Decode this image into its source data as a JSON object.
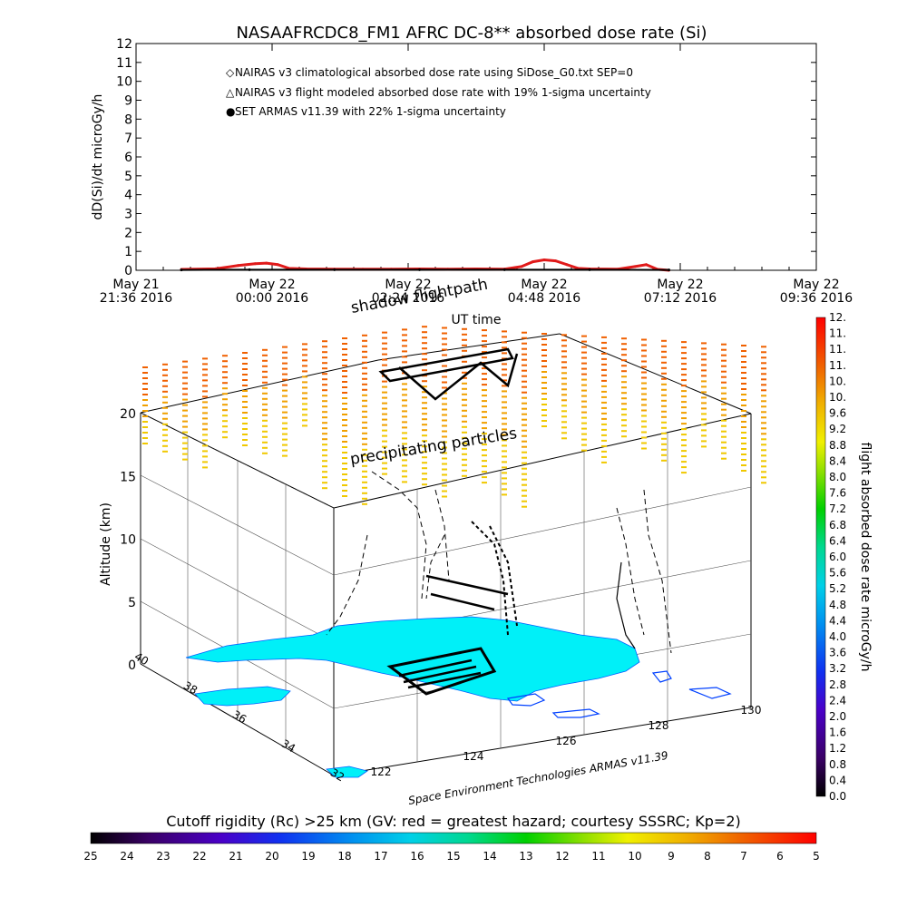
{
  "chart_data": [
    {
      "type": "line",
      "title": "NASAAFRCDC8_FM1 AFRC DC-8** absorbed dose rate (Si)",
      "xlabel": "UT time",
      "ylabel": "dD(Si)/dt microGy/h",
      "ylim": [
        0,
        12
      ],
      "y_ticks": [
        "0",
        "1",
        "2",
        "3",
        "4",
        "5",
        "6",
        "7",
        "8",
        "9",
        "10",
        "11",
        "12"
      ],
      "x_ticks": [
        {
          "top": "May 21",
          "bottom": "21:36 2016"
        },
        {
          "top": "May 22",
          "bottom": "00:00 2016"
        },
        {
          "top": "May 22",
          "bottom": "02:24 2016"
        },
        {
          "top": "May 22",
          "bottom": "04:48 2016"
        },
        {
          "top": "May 22",
          "bottom": "07:12 2016"
        },
        {
          "top": "May 22",
          "bottom": "09:36 2016"
        }
      ],
      "legend": [
        {
          "symbol": "◇",
          "color": "#e01a1a",
          "label": "NAIRAS v3 climatological absorbed dose rate using SiDose_G0.txt SEP=0"
        },
        {
          "symbol": "△",
          "color": "#000000",
          "label": "NAIRAS v3 flight modeled absorbed dose rate with 19% 1-sigma uncertainty"
        },
        {
          "symbol": "●",
          "color": "#1a2adc",
          "label": "SET ARMAS v11.39 with 22% 1-sigma uncertainty"
        }
      ],
      "series": [
        {
          "name": "NAIRAS v3 climatological absorbed dose rate using SiDose_G0.txt SEP=0",
          "color": "#e01a1a",
          "x_hours": [
            0.8,
            1.4,
            1.8,
            2.1,
            2.3,
            2.5,
            2.7,
            3.0,
            3.5,
            4.0,
            4.5,
            5.0,
            5.5,
            6.0,
            6.5,
            6.8,
            7.0,
            7.2,
            7.4,
            7.6,
            7.8,
            8.0,
            8.5,
            8.8,
            9.0,
            9.2,
            9.4
          ],
          "values": [
            0.05,
            0.08,
            0.25,
            0.35,
            0.38,
            0.3,
            0.1,
            0.07,
            0.06,
            0.06,
            0.06,
            0.07,
            0.06,
            0.07,
            0.06,
            0.2,
            0.45,
            0.55,
            0.5,
            0.3,
            0.1,
            0.07,
            0.06,
            0.2,
            0.3,
            0.05,
            0.0
          ]
        },
        {
          "name": "NAIRAS v3 flight modeled absorbed dose rate with 19% 1-sigma uncertainty",
          "color": "#000000",
          "x_hours": [
            0.8,
            2.0,
            3.5,
            5.0,
            6.5,
            8.0,
            9.4
          ],
          "values": [
            0.02,
            0.03,
            0.03,
            0.03,
            0.03,
            0.03,
            0.02
          ]
        }
      ]
    },
    {
      "type": "scatter",
      "xlabel": "Space Environment Technologies ARMAS v11.39",
      "zlabel": "Altitude (km)",
      "z_ticks": [
        "0",
        "5",
        "10",
        "15",
        "20"
      ],
      "lon_ticks": [
        "122",
        "124",
        "126",
        "128",
        "130"
      ],
      "lat_ticks": [
        "32",
        "34",
        "36",
        "38",
        "40"
      ],
      "annotations": [
        "shadow flightpath",
        "precipitating particles"
      ]
    }
  ],
  "right_colorbar": {
    "label": "flight absorbed dose rate microGy/h",
    "ticks": [
      "0.0",
      "0.4",
      "0.8",
      "1.2",
      "1.6",
      "2.0",
      "2.4",
      "2.8",
      "3.2",
      "3.6",
      "4.0",
      "4.4",
      "4.8",
      "5.2",
      "5.6",
      "6.0",
      "6.4",
      "6.8",
      "7.2",
      "7.6",
      "8.0",
      "8.4",
      "8.8",
      "9.2",
      "9.6",
      "10.",
      "10.",
      "11.",
      "11.",
      "11.",
      "12."
    ]
  },
  "bottom_colorbar": {
    "label": "Cutoff rigidity (Rc) >25 km (GV: red = greatest hazard; courtesy SSSRC; Kp=2)",
    "ticks": [
      "25",
      "24",
      "23",
      "22",
      "21",
      "20",
      "19",
      "18",
      "17",
      "16",
      "15",
      "14",
      "13",
      "12",
      "11",
      "10",
      "9",
      "8",
      "7",
      "6",
      "5"
    ]
  }
}
